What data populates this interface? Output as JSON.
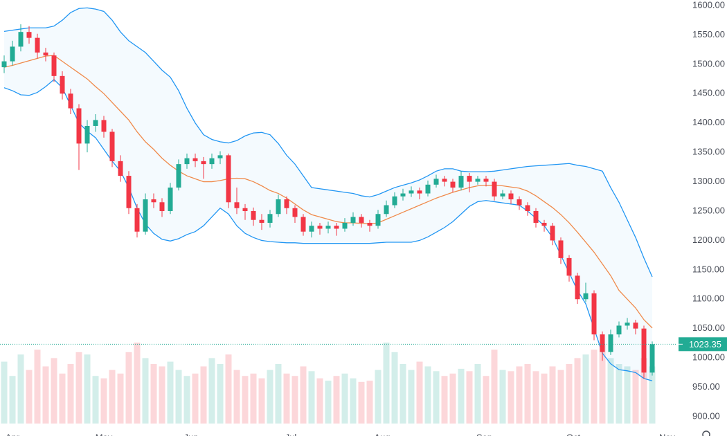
{
  "chart_data": {
    "type": "candlestick",
    "ylim": [
      900,
      1600
    ],
    "yticks": [
      {
        "value": 900,
        "label": "900.00"
      },
      {
        "value": 950,
        "label": "950.00"
      },
      {
        "value": 1000,
        "label": "1000.00"
      },
      {
        "value": 1050,
        "label": "1050.00"
      },
      {
        "value": 1100,
        "label": "1100.00"
      },
      {
        "value": 1150,
        "label": "1150.00"
      },
      {
        "value": 1200,
        "label": "1200.00"
      },
      {
        "value": 1250,
        "label": "1250.00"
      },
      {
        "value": 1300,
        "label": "1300.00"
      },
      {
        "value": 1350,
        "label": "1350.00"
      },
      {
        "value": 1400,
        "label": "1400.00"
      },
      {
        "value": 1450,
        "label": "1450.00"
      },
      {
        "value": 1500,
        "label": "1500.00"
      },
      {
        "value": 1550,
        "label": "1550.00"
      },
      {
        "value": 1600,
        "label": "1600.00"
      }
    ],
    "month_ticks": [
      {
        "label": "Apr",
        "index": 1
      },
      {
        "label": "May",
        "index": 12
      },
      {
        "label": "Jun",
        "index": 22.5
      },
      {
        "label": "Jul",
        "index": 34.5
      },
      {
        "label": "Aug",
        "index": 45.5
      },
      {
        "label": "Sep",
        "index": 57.8
      },
      {
        "label": "Oct",
        "index": 68.5
      },
      {
        "label": "Nov",
        "index": 79.8
      }
    ],
    "up_color": "#22ab94",
    "down_color": "#f23645",
    "band_color": "#2196f3",
    "basis_color": "#f08a4b",
    "open": [
      1495,
      1505,
      1530,
      1555,
      1545,
      1520,
      1515,
      1480,
      1450,
      1425,
      1365,
      1395,
      1405,
      1385,
      1335,
      1310,
      1255,
      1215,
      1270,
      1265,
      1250,
      1290,
      1330,
      1340,
      1335,
      1330,
      1340,
      1345,
      1265,
      1255,
      1250,
      1235,
      1230,
      1245,
      1270,
      1255,
      1240,
      1215,
      1225,
      1220,
      1225,
      1220,
      1230,
      1240,
      1230,
      1225,
      1245,
      1260,
      1275,
      1280,
      1285,
      1280,
      1295,
      1305,
      1300,
      1290,
      1310,
      1300,
      1305,
      1300,
      1275,
      1280,
      1270,
      1260,
      1250,
      1230,
      1225,
      1200,
      1170,
      1140,
      1100,
      1110,
      1040,
      1010,
      1040,
      1055,
      1060,
      1050,
      975
    ],
    "high": [
      1515,
      1540,
      1568,
      1565,
      1552,
      1528,
      1520,
      1488,
      1458,
      1432,
      1405,
      1415,
      1412,
      1390,
      1345,
      1318,
      1262,
      1280,
      1280,
      1272,
      1298,
      1338,
      1348,
      1348,
      1342,
      1348,
      1352,
      1348,
      1290,
      1262,
      1256,
      1245,
      1252,
      1278,
      1275,
      1260,
      1245,
      1232,
      1230,
      1232,
      1230,
      1238,
      1248,
      1245,
      1235,
      1252,
      1268,
      1282,
      1288,
      1292,
      1290,
      1302,
      1312,
      1310,
      1305,
      1318,
      1315,
      1310,
      1310,
      1305,
      1286,
      1285,
      1275,
      1265,
      1255,
      1235,
      1230,
      1205,
      1175,
      1145,
      1128,
      1115,
      1045,
      1048,
      1062,
      1068,
      1065,
      1055,
      1028
    ],
    "low": [
      1485,
      1498,
      1522,
      1535,
      1510,
      1505,
      1470,
      1440,
      1415,
      1320,
      1350,
      1385,
      1375,
      1325,
      1300,
      1245,
      1205,
      1210,
      1255,
      1240,
      1245,
      1285,
      1322,
      1325,
      1305,
      1322,
      1330,
      1255,
      1245,
      1235,
      1225,
      1218,
      1222,
      1240,
      1245,
      1230,
      1208,
      1205,
      1210,
      1212,
      1208,
      1215,
      1225,
      1222,
      1215,
      1220,
      1240,
      1255,
      1268,
      1274,
      1270,
      1275,
      1290,
      1292,
      1282,
      1285,
      1282,
      1295,
      1292,
      1268,
      1270,
      1262,
      1252,
      1242,
      1222,
      1215,
      1192,
      1160,
      1130,
      1092,
      1095,
      1030,
      995,
      1005,
      1035,
      1048,
      1040,
      965,
      970
    ],
    "close": [
      1505,
      1530,
      1555,
      1545,
      1520,
      1515,
      1480,
      1450,
      1425,
      1365,
      1395,
      1405,
      1385,
      1335,
      1310,
      1255,
      1215,
      1270,
      1265,
      1250,
      1290,
      1330,
      1340,
      1335,
      1330,
      1340,
      1345,
      1265,
      1255,
      1250,
      1235,
      1230,
      1245,
      1270,
      1255,
      1240,
      1215,
      1225,
      1220,
      1225,
      1220,
      1230,
      1240,
      1230,
      1225,
      1245,
      1260,
      1275,
      1280,
      1285,
      1280,
      1295,
      1305,
      1300,
      1290,
      1310,
      1300,
      1305,
      1300,
      1275,
      1280,
      1270,
      1260,
      1250,
      1230,
      1225,
      1200,
      1170,
      1140,
      1100,
      1110,
      1040,
      1010,
      1040,
      1055,
      1060,
      1050,
      975,
      1023.35
    ],
    "volume": [
      52,
      40,
      58,
      45,
      62,
      48,
      55,
      42,
      50,
      60,
      58,
      40,
      38,
      45,
      42,
      60,
      68,
      55,
      50,
      48,
      52,
      45,
      40,
      42,
      48,
      55,
      50,
      58,
      45,
      40,
      42,
      38,
      45,
      50,
      42,
      40,
      48,
      44,
      38,
      36,
      40,
      42,
      38,
      35,
      36,
      45,
      68,
      60,
      50,
      45,
      52,
      48,
      44,
      40,
      42,
      46,
      44,
      50,
      40,
      62,
      45,
      44,
      48,
      50,
      44,
      42,
      48,
      45,
      50,
      55,
      58,
      62,
      66,
      55,
      50,
      48,
      45,
      55,
      48
    ],
    "volume_lim": [
      0,
      100
    ],
    "basis": [
      1495,
      1498,
      1502,
      1506,
      1510,
      1514,
      1515,
      1505,
      1495,
      1485,
      1475,
      1462,
      1450,
      1435,
      1420,
      1405,
      1385,
      1368,
      1355,
      1340,
      1328,
      1318,
      1310,
      1305,
      1300,
      1300,
      1302,
      1305,
      1306,
      1305,
      1300,
      1293,
      1285,
      1280,
      1272,
      1262,
      1252,
      1244,
      1240,
      1236,
      1232,
      1230,
      1230,
      1229,
      1228,
      1230,
      1236,
      1242,
      1248,
      1254,
      1260,
      1266,
      1272,
      1277,
      1282,
      1286,
      1290,
      1293,
      1294,
      1294,
      1293,
      1291,
      1289,
      1284,
      1276,
      1266,
      1256,
      1244,
      1230,
      1214,
      1197,
      1180,
      1160,
      1140,
      1115,
      1100,
      1085,
      1065,
      1051
    ],
    "upper_band": [
      1556,
      1558,
      1560,
      1562,
      1562,
      1562,
      1565,
      1575,
      1588,
      1595,
      1596,
      1594,
      1590,
      1575,
      1555,
      1540,
      1530,
      1520,
      1505,
      1490,
      1478,
      1455,
      1425,
      1400,
      1380,
      1372,
      1368,
      1366,
      1370,
      1378,
      1383,
      1384,
      1380,
      1365,
      1345,
      1330,
      1310,
      1290,
      1288,
      1286,
      1284,
      1282,
      1280,
      1276,
      1274,
      1278,
      1284,
      1290,
      1294,
      1298,
      1303,
      1310,
      1318,
      1322,
      1322,
      1318,
      1317,
      1317,
      1317,
      1318,
      1320,
      1322,
      1324,
      1326,
      1327,
      1328,
      1329,
      1330,
      1331,
      1328,
      1326,
      1322,
      1318,
      1290,
      1265,
      1235,
      1205,
      1170,
      1138
    ],
    "lower_band": [
      1460,
      1455,
      1448,
      1447,
      1452,
      1462,
      1474,
      1460,
      1430,
      1400,
      1386,
      1375,
      1355,
      1335,
      1318,
      1290,
      1255,
      1228,
      1212,
      1202,
      1199,
      1203,
      1210,
      1215,
      1225,
      1240,
      1255,
      1245,
      1225,
      1212,
      1205,
      1200,
      1198,
      1197,
      1196,
      1196,
      1195,
      1195,
      1195,
      1195,
      1195,
      1195,
      1195,
      1195,
      1195,
      1196,
      1197,
      1197,
      1197,
      1197,
      1200,
      1206,
      1214,
      1222,
      1232,
      1245,
      1258,
      1266,
      1268,
      1266,
      1264,
      1262,
      1260,
      1250,
      1238,
      1225,
      1205,
      1175,
      1145,
      1115,
      1092,
      1050,
      1008,
      990,
      980,
      978,
      975,
      965,
      961
    ]
  }
}
